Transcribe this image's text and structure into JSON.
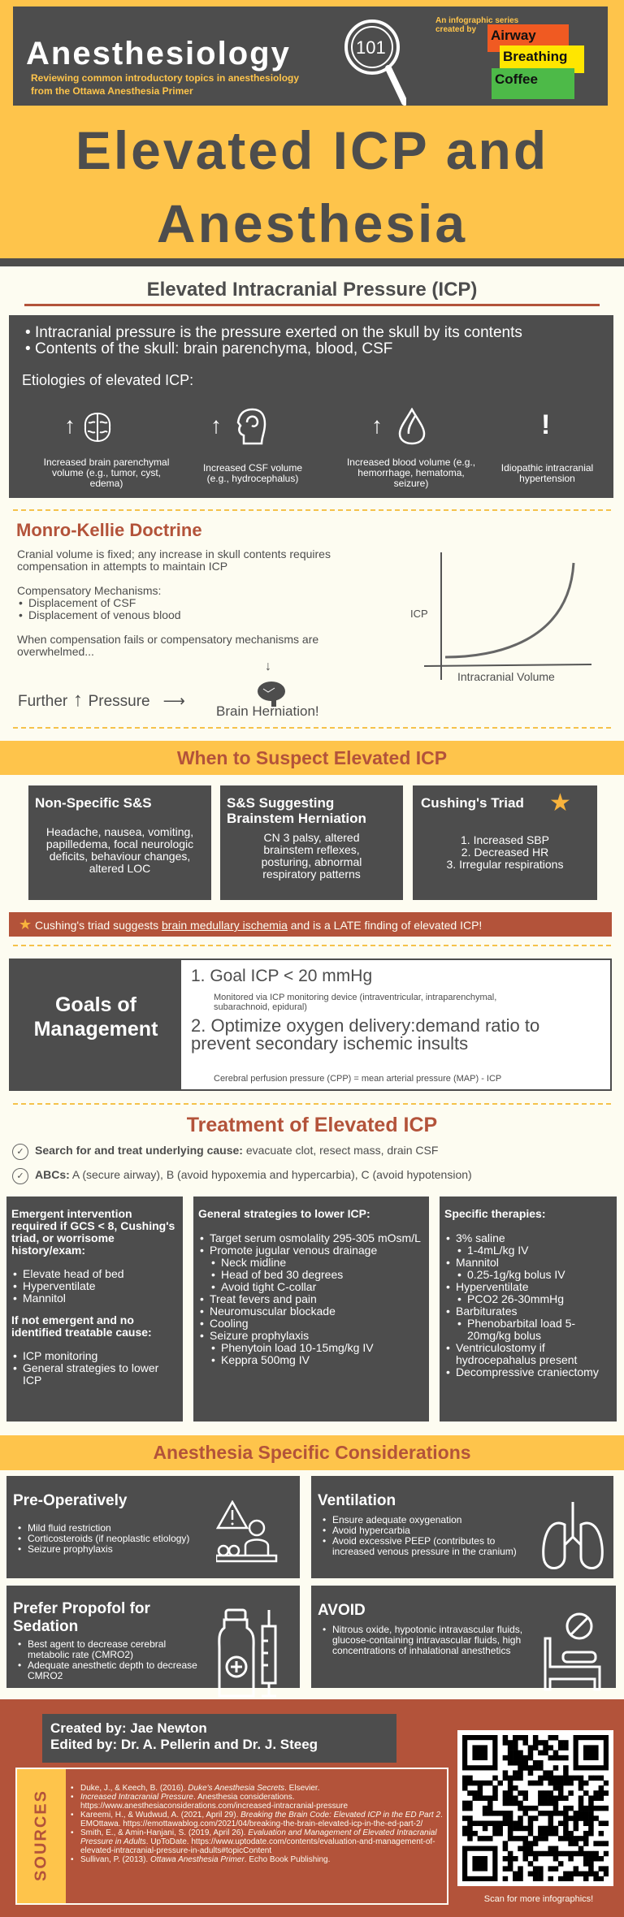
{
  "header": {
    "brand": "Anesthesiology",
    "badge": "101",
    "tagline1": "Reviewing common introductory topics in anesthesiology",
    "tagline2": "from the Ottawa Anesthesia Primer",
    "series1": "An infographic series",
    "series2": "created by",
    "logo": [
      "Airway",
      "Breathing",
      "Coffee"
    ],
    "title1": "Elevated ICP and",
    "title2": "Anesthesia"
  },
  "colors": {
    "yellow": "#fec44b",
    "dark": "#4d4d4d",
    "rust": "#b3533a",
    "cream": "#fdfcf1"
  },
  "icp": {
    "heading": "Elevated Intracranial Pressure (ICP)",
    "bullets": [
      "Intracranial pressure is the pressure exerted on the skull by its contents",
      "Contents of the skull: brain parenchyma, blood, CSF"
    ],
    "etiologies_label": "Etiologies of elevated ICP:",
    "etiologies": [
      {
        "icon": "brain-icon",
        "label": "Increased brain parenchymal volume (e.g., tumor, cyst, edema)"
      },
      {
        "icon": "head-csf-icon",
        "label": "Increased CSF volume (e.g., hydrocephalus)"
      },
      {
        "icon": "blood-drop-icon",
        "label": "Increased blood  volume (e.g., hemorrhage, hematoma, seizure)"
      },
      {
        "icon": "exclamation-icon",
        "label": "Idiopathic intracranial hypertension"
      }
    ]
  },
  "monro": {
    "title": "Monro-Kellie Doctrine",
    "p1": "Cranial volume is fixed; any increase in skull contents requires compensation in attempts to maintain ICP",
    "mech_label": "Compensatory Mechanisms:",
    "mechs": [
      "Displacement of CSF",
      "Displacement of venous blood"
    ],
    "p2": "When compensation fails or compensatory mechanisms are overwhelmed...",
    "further": "Further",
    "pressure": "Pressure",
    "herniation": "Brain Herniation!",
    "graph": {
      "ylabel": "ICP",
      "xlabel": "Intracranial Volume"
    }
  },
  "suspect": {
    "heading": "When to Suspect Elevated ICP",
    "cards": [
      {
        "title": "Non-Specific S&S",
        "body": "Headache, nausea, vomiting, papilledema, focal neurologic deficits, behaviour changes, altered LOC"
      },
      {
        "title": "S&S Suggesting Brainstem Herniation",
        "body": "CN 3 palsy, altered brainstem reflexes, posturing, abnormal respiratory patterns"
      },
      {
        "title": "Cushing's Triad",
        "items": [
          "1. Increased SBP",
          "2. Decreased HR",
          "3. Irregular respirations"
        ]
      }
    ],
    "note_pre": "Cushing's triad suggests ",
    "note_link": "brain medullary ischemia",
    "note_post": " and is a LATE finding of elevated ICP!"
  },
  "goals": {
    "label": "Goals of Management",
    "g1": "1. Goal ICP < 20 mmHg",
    "g1_note": "Monitored via ICP monitoring device (intraventricular, intraparenchymal, subarachnoid, epidural)",
    "g2": "2. Optimize oxygen delivery:demand ratio to prevent secondary ischemic insults",
    "g2_note": "Cerebral perfusion pressure (CPP) = mean arterial pressure (MAP) - ICP"
  },
  "treatment": {
    "heading": "Treatment of Elevated ICP",
    "checks": [
      {
        "bold": "Search for and treat underlying cause:",
        "text": " evacuate clot, resect mass, drain CSF"
      },
      {
        "bold": "ABCs:",
        "text": " A (secure airway), B (avoid hypoxemia and hypercarbia), C (avoid hypotension)"
      }
    ],
    "col1": {
      "title": "Emergent intervention required if GCS < 8, Cushing's triad, or worrisome history/exam:",
      "items": [
        {
          "t": "Elevate head of bed"
        },
        {
          "t": "Hyperventilate"
        },
        {
          "t": "Mannitol"
        }
      ],
      "title2": "If not emergent and no identified treatable cause:",
      "items2": [
        {
          "t": "ICP monitoring"
        },
        {
          "t": "General strategies to lower ICP"
        }
      ]
    },
    "col2": {
      "title": "General strategies to lower ICP:",
      "items": [
        {
          "t": "Target serum osmolality 295-305 mOsm/L"
        },
        {
          "t": "Promote jugular venous drainage"
        },
        {
          "t": "Neck midline",
          "s": 1
        },
        {
          "t": "Head of bed 30 degrees",
          "s": 1
        },
        {
          "t": "Avoid tight C-collar",
          "s": 1
        },
        {
          "t": "Treat fevers and pain"
        },
        {
          "t": "Neuromuscular blockade"
        },
        {
          "t": "Cooling"
        },
        {
          "t": "Seizure prophylaxis"
        },
        {
          "t": "Phenytoin load 10-15mg/kg IV",
          "s": 1
        },
        {
          "t": "Keppra 500mg IV",
          "s": 1
        }
      ]
    },
    "col3": {
      "title": "Specific therapies:",
      "items": [
        {
          "t": "3% saline"
        },
        {
          "t": "1-4mL/kg IV",
          "s": 1
        },
        {
          "t": "Mannitol"
        },
        {
          "t": "0.25-1g/kg bolus IV",
          "s": 1
        },
        {
          "t": "Hyperventilate"
        },
        {
          "t": "PCO2 26-30mmHg",
          "s": 1
        },
        {
          "t": "Barbiturates"
        },
        {
          "t": "Phenobarbital load 5-20mg/kg bolus",
          "s": 1
        },
        {
          "t": "Ventriculostomy if hydrocepahalus present"
        },
        {
          "t": "Decompressive craniectomy"
        }
      ]
    }
  },
  "anesthesia": {
    "heading": "Anesthesia Specific Considerations",
    "cards": [
      {
        "title": "Pre-Operatively",
        "icon": "patient-warning-icon",
        "items": [
          {
            "t": "Mild fluid restriction"
          },
          {
            "t": "Corticosteroids (if neoplastic etiology)"
          },
          {
            "t": "Seizure prophylaxis"
          }
        ]
      },
      {
        "title": "Ventilation",
        "icon": "lungs-icon",
        "items": [
          {
            "t": "Ensure adequate oxygenation"
          },
          {
            "t": "Avoid hypercarbia"
          },
          {
            "t": "Avoid excessive PEEP (contributes to increased venous pressure in the cranium)"
          }
        ]
      },
      {
        "title": "Prefer Propofol for Sedation",
        "icon": "vial-syringe-icon",
        "items": [
          {
            "t": "Best agent to decrease cerebral metabolic rate (CMRO2)"
          },
          {
            "t": "Adequate anesthetic depth to decrease CMRO2"
          }
        ]
      },
      {
        "title": "AVOID",
        "icon": "bed-prohibited-icon",
        "items": [
          {
            "t": "Nitrous oxide, hypotonic intravascular fluids, glucose-containing intravascular fluids, high concentrations of inhalational anesthetics"
          }
        ]
      }
    ]
  },
  "footer": {
    "created": "Created by: Jae Newton",
    "edited": "Edited by: Dr. A. Pellerin and Dr. J. Steeg",
    "sources_label": "SOURCES",
    "sources": [
      {
        "pre": "Duke, J., & Keech, B. (2016). ",
        "it": "Duke's Anesthesia Secrets",
        "post": ". Elsevier."
      },
      {
        "pre": "",
        "it": "Increased Intracranial Pressure",
        "post": ". Anesthesia considerations. https://www.anesthesiaconsiderations.com/increased-intracranial-pressure"
      },
      {
        "pre": "Kareemi, H., & Wudwud, A. (2021, April 29). ",
        "it": "Breaking the Brain Code: Elevated ICP in the ED Part 2",
        "post": ". EMOttawa. https://emottawablog.com/2021/04/breaking-the-brain-elevated-icp-in-the-ed-part-2/"
      },
      {
        "pre": "Smith, E., & Amin-Hanjani, S. (2019, April 26). ",
        "it": "Evaluation and Management of Elevated Intracranial Pressure in Adults",
        "post": ". UpToDate. https://www.uptodate.com/contents/evaluation-and-management-of-elevated-intracranial-pressure-in-adults#topicContent"
      },
      {
        "pre": "Sullivan, P. (2013). ",
        "it": "Ottawa Anesthesia Primer",
        "post": ". Echo Book Publishing."
      }
    ],
    "scan": "Scan for more infographics!"
  }
}
